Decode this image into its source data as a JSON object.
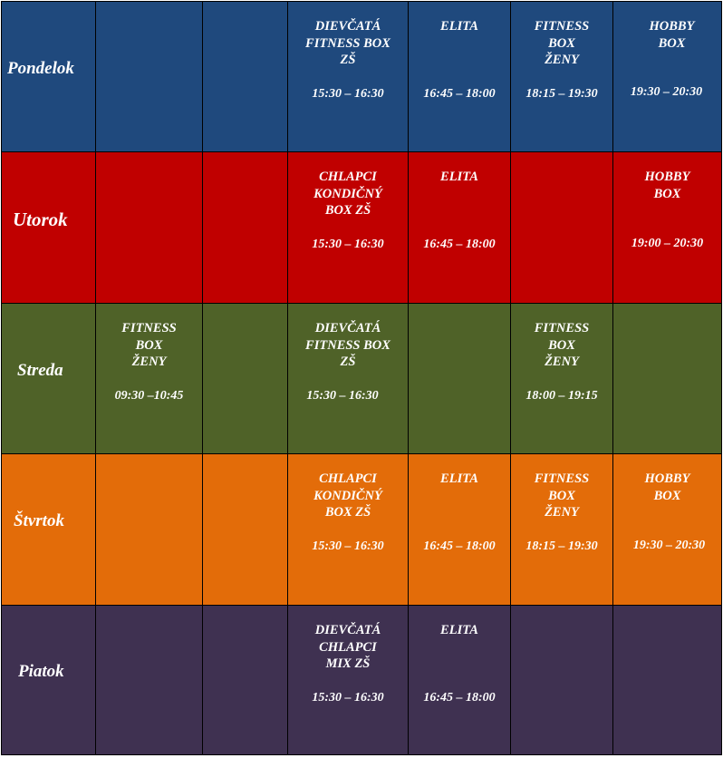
{
  "colors": {
    "monday": "#1f497d",
    "tuesday": "#c00000",
    "wednesday": "#4f6228",
    "thursday": "#e36c09",
    "friday": "#3f3151",
    "border": "#000000",
    "text": "#ffffff"
  },
  "days": [
    {
      "name": "Pondelok",
      "slots": [
        null,
        null,
        {
          "name": "DIEVČATÁ\nFITNESS BOX\nZŠ",
          "time": "15:30 – 16:30"
        },
        {
          "name": "ELITA",
          "time": "16:45 – 18:00"
        },
        {
          "name": "FITNESS\nBOX\nŽENY",
          "time": "18:15 – 19:30"
        },
        {
          "name": "HOBBY\nBOX",
          "time": "19:30 – 20:30"
        }
      ]
    },
    {
      "name": "Utorok",
      "slots": [
        null,
        null,
        {
          "name": "CHLAPCI\nKONDIČNÝ\nBOX ZŠ",
          "time": "15:30 – 16:30"
        },
        {
          "name": "ELITA",
          "time": "16:45 – 18:00"
        },
        null,
        {
          "name": "HOBBY\nBOX",
          "time": "19:00 – 20:30"
        }
      ]
    },
    {
      "name": "Streda",
      "slots": [
        {
          "name": "FITNESS\nBOX\nŽENY",
          "time": "09:30 –10:45"
        },
        null,
        {
          "name": "DIEVČATÁ\nFITNESS BOX\nZŠ",
          "time": "15:30 – 16:30"
        },
        null,
        {
          "name": "FITNESS\nBOX\nŽENY",
          "time": "18:00 – 19:15"
        },
        null
      ]
    },
    {
      "name": "Štvrtok",
      "slots": [
        null,
        null,
        {
          "name": "CHLAPCI\nKONDIČNÝ\nBOX ZŠ",
          "time": "15:30 – 16:30"
        },
        {
          "name": "ELITA",
          "time": "16:45 – 18:00"
        },
        {
          "name": "FITNESS\nBOX\nŽENY",
          "time": "18:15 – 19:30"
        },
        {
          "name": "HOBBY\nBOX",
          "time": "19:30 – 20:30"
        }
      ]
    },
    {
      "name": "Piatok",
      "slots": [
        null,
        null,
        {
          "name": "DIEVČATÁ\nCHLAPCI\nMIX ZŠ",
          "time": "15:30 – 16:30"
        },
        {
          "name": "ELITA",
          "time": "16:45 – 18:00"
        },
        null,
        null
      ]
    }
  ]
}
